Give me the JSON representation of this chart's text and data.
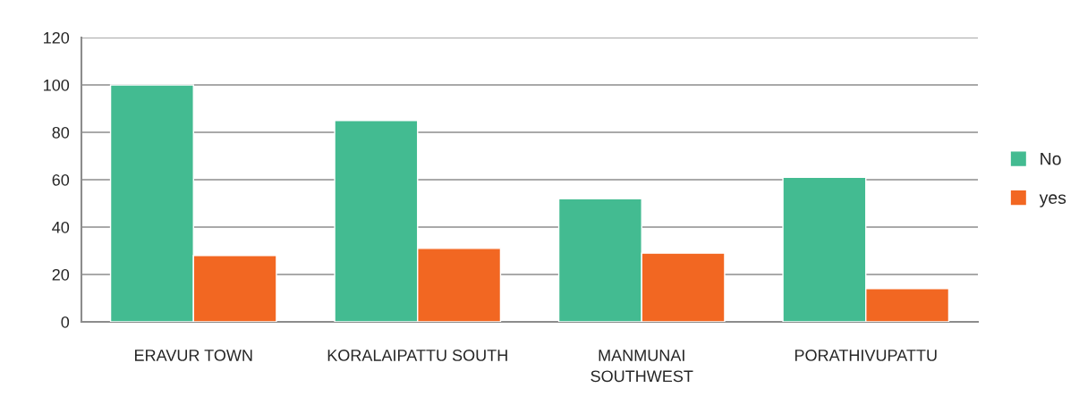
{
  "chart_data": {
    "type": "bar",
    "categories": [
      "ERAVUR TOWN",
      "KORALAIPATTU SOUTH",
      "MANMUNAI\nSOUTHWEST",
      "PORATHIVUPATTU"
    ],
    "series": [
      {
        "name": "No",
        "color": "#43bb91",
        "values": [
          100,
          85,
          52,
          61
        ]
      },
      {
        "name": "yes",
        "color": "#f26722",
        "values": [
          28,
          31,
          29,
          14
        ]
      }
    ],
    "ylim": [
      0,
      120
    ],
    "yticks": [
      0,
      20,
      40,
      60,
      80,
      100,
      120
    ],
    "grid": "y",
    "legend": "right"
  }
}
